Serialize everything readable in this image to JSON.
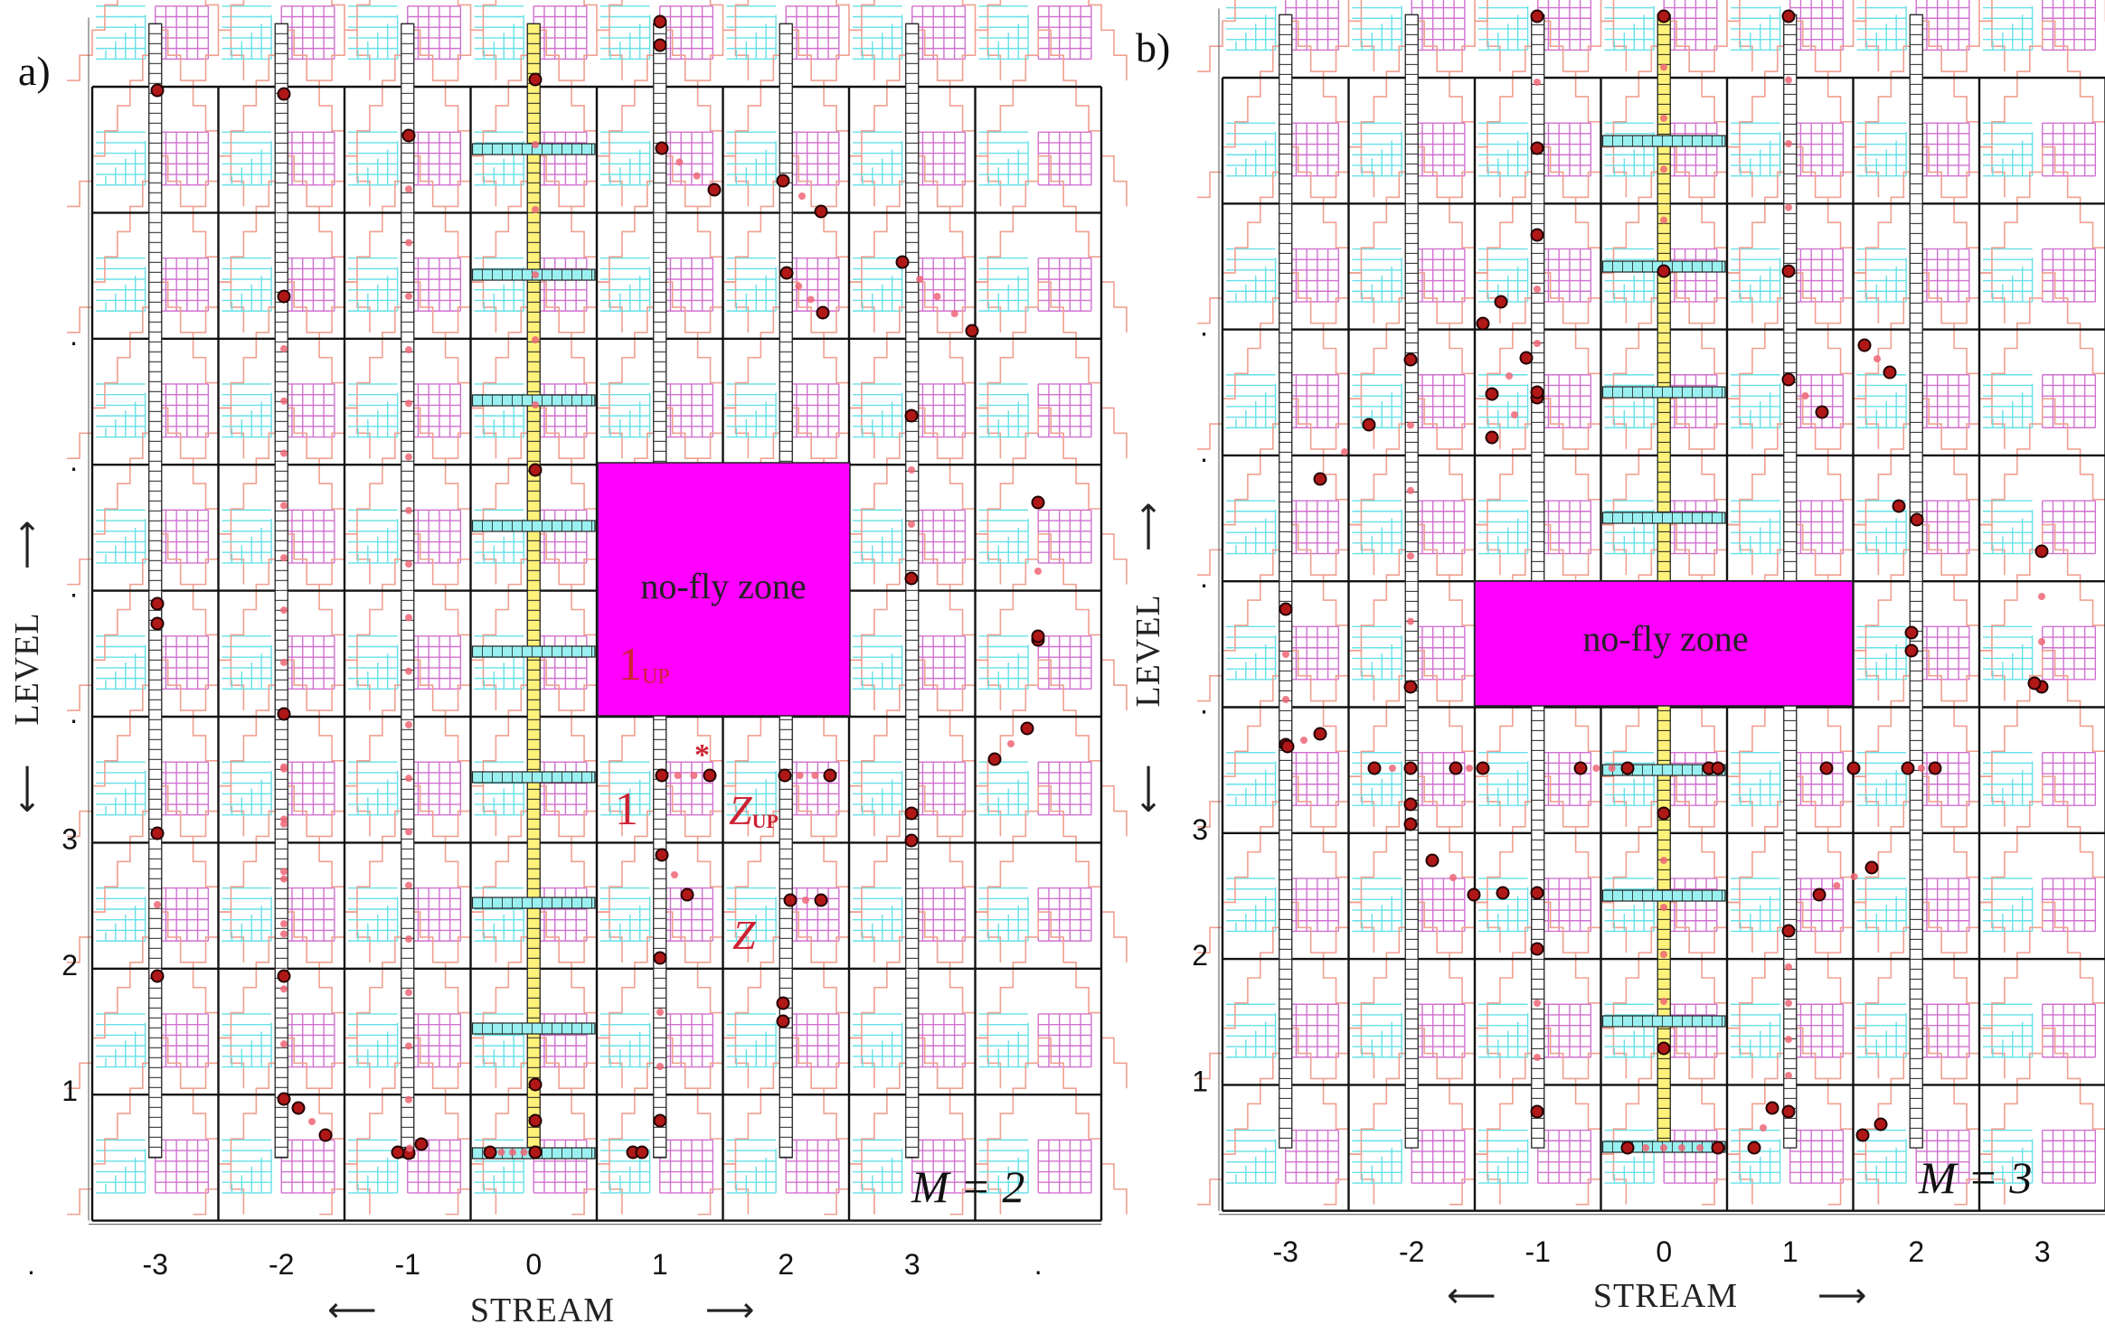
{
  "panels": [
    {
      "id": "a",
      "label": "a)",
      "m_label": "M = 2",
      "x_ticks": [
        "-3",
        "-2",
        "-1",
        "0",
        "1",
        "2",
        "3",
        "."
      ],
      "y_ticks": [
        "1",
        "2",
        "3",
        ".",
        ".",
        ".",
        "."
      ],
      "x_title": "STREAM",
      "y_title": "LEVEL",
      "zone_label": "no-fly zone",
      "annotations": [
        {
          "text": "1",
          "sub": "UP",
          "color": "#ff2255"
        },
        {
          "text": "1",
          "sub": "",
          "color": "#cc2233"
        },
        {
          "text": "Z",
          "sub": "UP",
          "color": "#cc2233"
        },
        {
          "text": "Z",
          "sub": "",
          "color": "#cc2233"
        },
        {
          "text": "*",
          "sub": "",
          "color": "#cc2233"
        }
      ]
    },
    {
      "id": "b",
      "label": "b)",
      "m_label": "M = 3",
      "x_ticks": [
        "-3",
        "-2",
        "-1",
        "0",
        "1",
        "2",
        "3"
      ],
      "y_ticks": [
        "1",
        "2",
        "3",
        ".",
        ".",
        ".",
        "."
      ],
      "x_title": "STREAM",
      "y_title": "LEVEL",
      "zone_label": "no-fly zone",
      "annotations": []
    }
  ],
  "arrows": {
    "left": "⟵",
    "right": "⟶",
    "up": "⟶",
    "down": "⟵"
  },
  "colors": {
    "zone": "#ff00ff",
    "staircase": "#f0a090",
    "cyan_grid": "#66e0e8",
    "magenta_grid": "#d070d0",
    "center_column": "#fff27a",
    "dot_dark": "#b01818",
    "dot_light": "#ee6677",
    "grid_line": "#111111"
  }
}
